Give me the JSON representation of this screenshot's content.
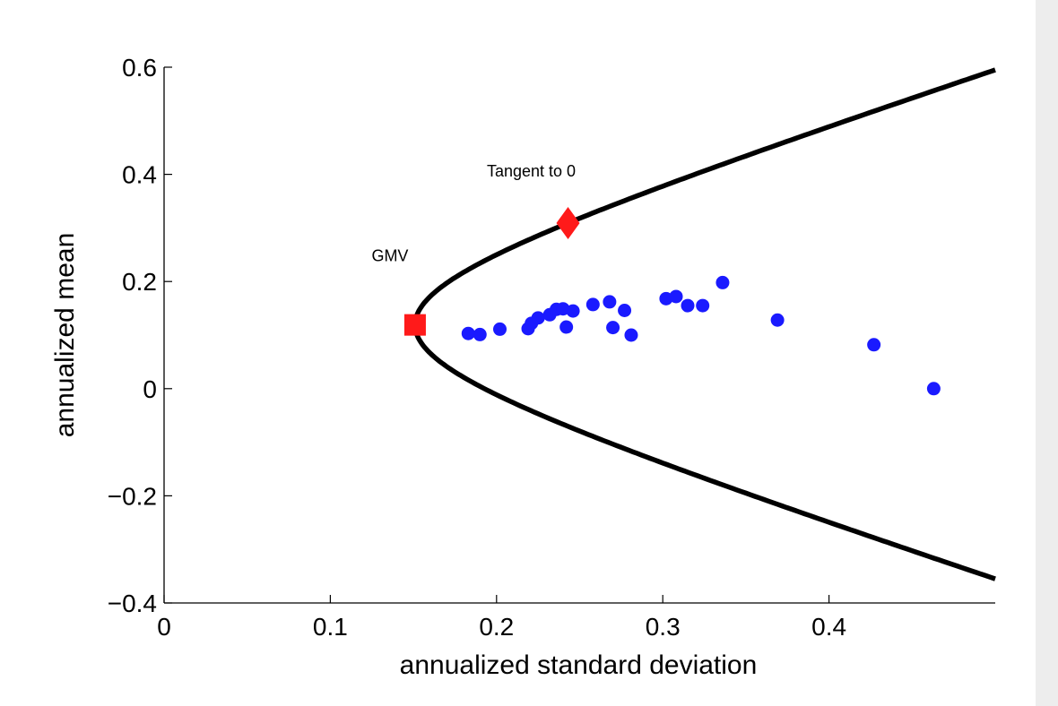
{
  "chart_data": {
    "type": "scatter",
    "xlabel": "annualized standard deviation",
    "ylabel": "annualized mean",
    "xlim": [
      0,
      0.5
    ],
    "ylim": [
      -0.4,
      0.6
    ],
    "xticks": [
      0,
      0.1,
      0.2,
      0.3,
      0.4
    ],
    "xtick_labels": [
      "0",
      "0.1",
      "0.2",
      "0.3",
      "0.4"
    ],
    "yticks": [
      -0.4,
      -0.2,
      0,
      0.2,
      0.4,
      0.6
    ],
    "ytick_labels": [
      "−0.4",
      "−0.2",
      "0",
      "0.2",
      "0.4",
      "0.6"
    ],
    "grid": false,
    "frontier": {
      "color": "#000000",
      "gmv": {
        "x": 0.151,
        "y": 0.119
      },
      "upper_end": {
        "x": 0.5,
        "y": 0.595
      },
      "lower_end": {
        "x": 0.5,
        "y": -0.355
      }
    },
    "points": {
      "color": "#1a1aff",
      "values": [
        {
          "x": 0.183,
          "y": 0.103
        },
        {
          "x": 0.19,
          "y": 0.101
        },
        {
          "x": 0.202,
          "y": 0.111
        },
        {
          "x": 0.219,
          "y": 0.112
        },
        {
          "x": 0.221,
          "y": 0.122
        },
        {
          "x": 0.225,
          "y": 0.132
        },
        {
          "x": 0.232,
          "y": 0.138
        },
        {
          "x": 0.236,
          "y": 0.148
        },
        {
          "x": 0.24,
          "y": 0.149
        },
        {
          "x": 0.242,
          "y": 0.115
        },
        {
          "x": 0.246,
          "y": 0.145
        },
        {
          "x": 0.258,
          "y": 0.157
        },
        {
          "x": 0.268,
          "y": 0.162
        },
        {
          "x": 0.27,
          "y": 0.114
        },
        {
          "x": 0.277,
          "y": 0.146
        },
        {
          "x": 0.281,
          "y": 0.1
        },
        {
          "x": 0.302,
          "y": 0.168
        },
        {
          "x": 0.308,
          "y": 0.172
        },
        {
          "x": 0.315,
          "y": 0.155
        },
        {
          "x": 0.324,
          "y": 0.155
        },
        {
          "x": 0.336,
          "y": 0.198
        },
        {
          "x": 0.369,
          "y": 0.128
        },
        {
          "x": 0.427,
          "y": 0.082
        },
        {
          "x": 0.463,
          "y": 0.0
        }
      ]
    },
    "special_points": [
      {
        "label": "GMV",
        "marker": "square",
        "x": 0.151,
        "y": 0.119,
        "color": "#ff1a1a"
      },
      {
        "label": "Tangent to 0",
        "marker": "diamond",
        "x": 0.243,
        "y": 0.309,
        "color": "#ff1a1a"
      }
    ]
  }
}
